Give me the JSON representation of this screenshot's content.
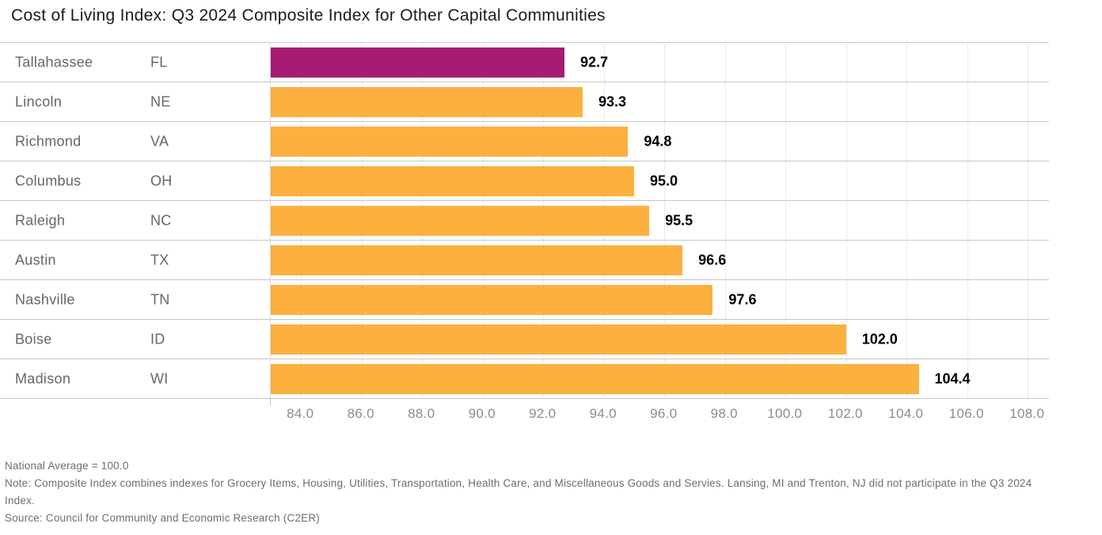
{
  "title": "Cost of Living Index: Q3 2024 Composite Index for Other Capital Communities",
  "chart_data": {
    "type": "bar",
    "orientation": "horizontal",
    "rows": [
      {
        "city": "Tallahassee",
        "state": "FL",
        "value": 92.7,
        "label": "92.7",
        "highlight": true
      },
      {
        "city": "Lincoln",
        "state": "NE",
        "value": 93.3,
        "label": "93.3",
        "highlight": false
      },
      {
        "city": "Richmond",
        "state": "VA",
        "value": 94.8,
        "label": "94.8",
        "highlight": false
      },
      {
        "city": "Columbus",
        "state": "OH",
        "value": 95.0,
        "label": "95.0",
        "highlight": false
      },
      {
        "city": "Raleigh",
        "state": "NC",
        "value": 95.5,
        "label": "95.5",
        "highlight": false
      },
      {
        "city": "Austin",
        "state": "TX",
        "value": 96.6,
        "label": "96.6",
        "highlight": false
      },
      {
        "city": "Nashville",
        "state": "TN",
        "value": 97.6,
        "label": "97.6",
        "highlight": false
      },
      {
        "city": "Boise",
        "state": "ID",
        "value": 102.0,
        "label": "102.0",
        "highlight": false
      },
      {
        "city": "Madison",
        "state": "WI",
        "value": 104.4,
        "label": "104.4",
        "highlight": false
      }
    ],
    "axis": {
      "min": 83.0,
      "max": 108.7,
      "tick_labels": [
        "84.0",
        "86.0",
        "88.0",
        "90.0",
        "92.0",
        "94.0",
        "96.0",
        "98.0",
        "100.0",
        "102.0",
        "104.0",
        "106.0",
        "108.0"
      ]
    },
    "colors": {
      "highlight": "#A61C73",
      "bar": "#FBB040"
    },
    "grid": "vertical-gridlines-on",
    "legend": "none"
  },
  "footer": {
    "national_average": "National Average = 100.0",
    "note": "Note: Composite Index combines indexes for Grocery Items, Housing, Utilities, Transportation, Health Care, and Miscellaneous Goods and Servies. Lansing, MI and Trenton, NJ did not participate in the Q3 2024 Index.",
    "source": "Source: Council for Community and Economic Research (C2ER)"
  }
}
